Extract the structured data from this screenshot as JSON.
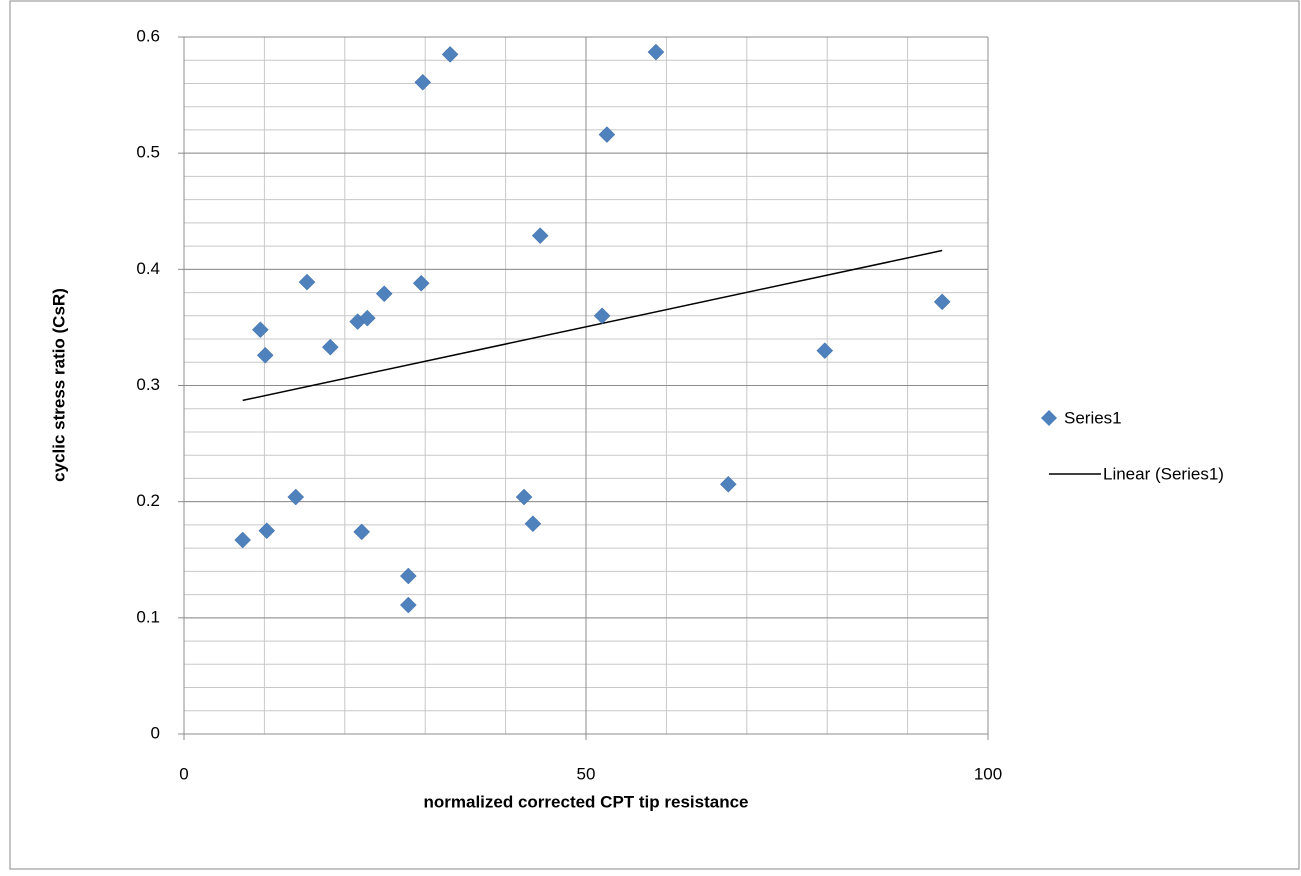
{
  "chart_data": {
    "type": "scatter",
    "x_label": "normalized corrected CPT tip resistance",
    "y_label": "cyclic stress ratio (CsR)",
    "xlim": [
      0,
      100
    ],
    "ylim": [
      0,
      0.6
    ],
    "xticks": [
      0,
      50,
      100
    ],
    "yticks": [
      0,
      0.1,
      0.2,
      0.3,
      0.4,
      0.5,
      0.6
    ],
    "x_minor_step": 10,
    "y_minor_step": 0.02,
    "grid": true,
    "legend": "right",
    "series": [
      {
        "name": "Series1",
        "color": "#4f81bd",
        "x": [
          7.3,
          9.5,
          10.1,
          10.3,
          13.9,
          15.3,
          18.2,
          21.6,
          22.1,
          22.8,
          24.9,
          27.9,
          27.9,
          29.5,
          29.7,
          33.1,
          42.3,
          43.4,
          44.3,
          52.0,
          52.6,
          58.7,
          67.7,
          79.7,
          94.3
        ],
        "values": [
          0.167,
          0.348,
          0.326,
          0.175,
          0.204,
          0.389,
          0.333,
          0.355,
          0.174,
          0.358,
          0.379,
          0.136,
          0.111,
          0.388,
          0.561,
          0.585,
          0.204,
          0.181,
          0.429,
          0.36,
          0.516,
          0.587,
          0.215,
          0.33,
          0.372
        ]
      }
    ],
    "trendline": {
      "name": "Linear (Series1)",
      "color": "#000000"
    }
  }
}
